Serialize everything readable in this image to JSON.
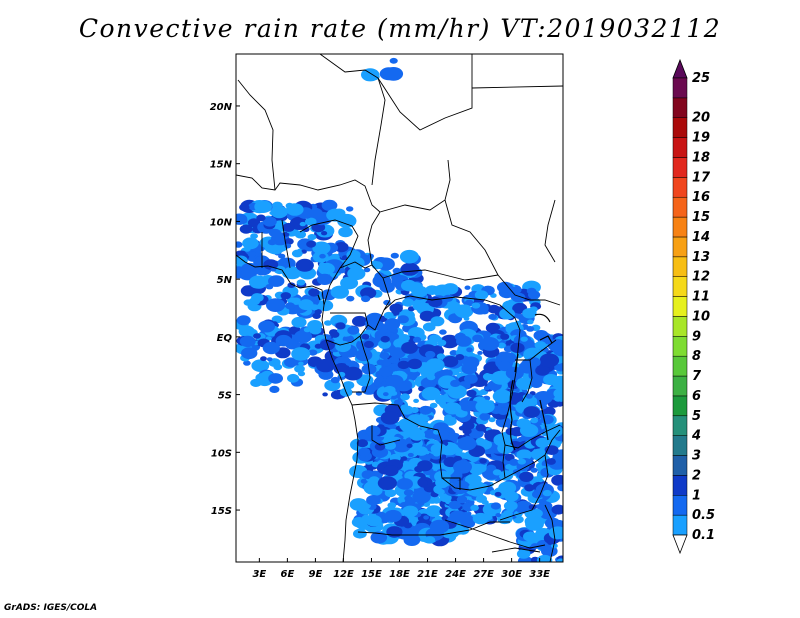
{
  "title": "Convective rain rate (mm/hr) VT:2019032112",
  "footer": "GrADS: IGES/COLA",
  "map": {
    "lon_range": [
      0.5,
      35.5
    ],
    "lat_range": [
      -19.5,
      24.5
    ],
    "x_ticks": [
      {
        "lon": 3,
        "label": "3E"
      },
      {
        "lon": 6,
        "label": "6E"
      },
      {
        "lon": 9,
        "label": "9E"
      },
      {
        "lon": 12,
        "label": "12E"
      },
      {
        "lon": 15,
        "label": "15E"
      },
      {
        "lon": 18,
        "label": "18E"
      },
      {
        "lon": 21,
        "label": "21E"
      },
      {
        "lon": 24,
        "label": "24E"
      },
      {
        "lon": 27,
        "label": "27E"
      },
      {
        "lon": 30,
        "label": "30E"
      },
      {
        "lon": 33,
        "label": "33E"
      }
    ],
    "y_ticks": [
      {
        "lat": 20,
        "label": "20N"
      },
      {
        "lat": 15,
        "label": "15N"
      },
      {
        "lat": 10,
        "label": "10N"
      },
      {
        "lat": 5,
        "label": "5N"
      },
      {
        "lat": 0,
        "label": "EQ"
      },
      {
        "lat": -5,
        "label": "5S"
      },
      {
        "lat": -10,
        "label": "10S"
      },
      {
        "lat": -15,
        "label": "15S"
      }
    ]
  },
  "legend": {
    "labels": [
      "0.1",
      "0.5",
      "1",
      "2",
      "3",
      "4",
      "5",
      "6",
      "7",
      "8",
      "9",
      "10",
      "11",
      "12",
      "13",
      "14",
      "15",
      "16",
      "17",
      "18",
      "19",
      "20",
      "25"
    ],
    "colors": [
      "#1aa0ff",
      "#1469f0",
      "#0f3ac8",
      "#1f5fa8",
      "#237a8c",
      "#25907a",
      "#1c9a3c",
      "#3cb043",
      "#58c83a",
      "#7edc32",
      "#a8e628",
      "#e6f01e",
      "#f5d91a",
      "#f7be14",
      "#f7a014",
      "#f78214",
      "#f5641a",
      "#f0461e",
      "#e1281e",
      "#c81414",
      "#aa0a0a",
      "#82051e",
      "#6b0a4f"
    ],
    "over_color": "#5a0a5a"
  }
}
